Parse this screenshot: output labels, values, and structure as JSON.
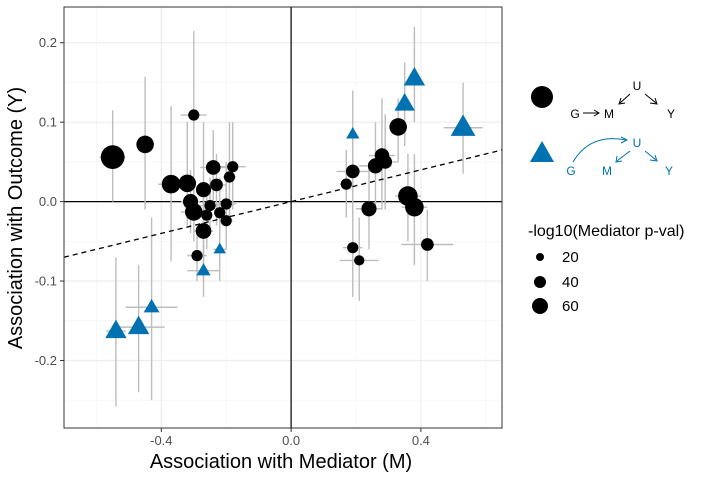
{
  "chart_data": {
    "type": "scatter",
    "title": "",
    "xlabel": "Association with Mediator (M)",
    "ylabel": "Association with Outcome (Y)",
    "xlim": [
      -0.7,
      0.65
    ],
    "ylim": [
      -0.285,
      0.245
    ],
    "x_ticks": [
      -0.4,
      0.0,
      0.4
    ],
    "x_tick_labels": [
      "-0.4",
      "0.0",
      "0.4"
    ],
    "y_ticks": [
      -0.2,
      -0.1,
      0.0,
      0.1,
      0.2
    ],
    "y_tick_labels": [
      "-0.2",
      "-0.1",
      "0.0",
      "0.1",
      "0.2"
    ],
    "grid": true,
    "reference_lines": {
      "x": 0,
      "y": 0
    },
    "trend_line": {
      "style": "dashed",
      "slope": 0.1,
      "intercept": 0.0
    },
    "colors": {
      "black_group": "#000000",
      "blue_group": "#0072b2",
      "error_bars": "#bdbdbd",
      "grid": "#ebebeb"
    },
    "size_legend": {
      "title": "-log10(Mediator p-val)",
      "values": [
        20,
        40,
        60
      ],
      "labels": [
        "20",
        "40",
        "60"
      ]
    },
    "shape_legend": [
      {
        "shape": "circle",
        "color": "#000000",
        "dag_nodes": [
          "G",
          "M",
          "U",
          "Y"
        ]
      },
      {
        "shape": "triangle",
        "color": "#0072b2",
        "dag_nodes": [
          "G",
          "M",
          "U",
          "Y"
        ]
      }
    ],
    "series": [
      {
        "shape": "circle",
        "color": "#000000",
        "points": [
          {
            "x": -0.55,
            "y": 0.056,
            "xerr": 0.04,
            "ylo": 0.0,
            "yhi": 0.115,
            "size": 65
          },
          {
            "x": -0.45,
            "y": 0.072,
            "xerr": 0.0,
            "ylo": -0.01,
            "yhi": 0.157,
            "size": 30
          },
          {
            "x": -0.37,
            "y": 0.022,
            "xerr": 0.04,
            "ylo": -0.075,
            "yhi": 0.12,
            "size": 35
          },
          {
            "x": -0.32,
            "y": 0.023,
            "xerr": 0.0,
            "ylo": -0.03,
            "yhi": 0.1,
            "size": 30
          },
          {
            "x": -0.31,
            "y": 0.0,
            "xerr": 0.03,
            "ylo": -0.04,
            "yhi": 0.04,
            "size": 20
          },
          {
            "x": -0.3,
            "y": -0.013,
            "xerr": 0.04,
            "ylo": -0.05,
            "yhi": 0.03,
            "size": 30
          },
          {
            "x": -0.3,
            "y": 0.109,
            "xerr": 0.04,
            "ylo": 0.01,
            "yhi": 0.215,
            "size": 8
          },
          {
            "x": -0.29,
            "y": -0.068,
            "xerr": 0.03,
            "ylo": -0.1,
            "yhi": -0.03,
            "size": 8
          },
          {
            "x": -0.27,
            "y": 0.015,
            "xerr": 0.0,
            "ylo": -0.07,
            "yhi": 0.1,
            "size": 20
          },
          {
            "x": -0.27,
            "y": -0.037,
            "xerr": 0.03,
            "ylo": -0.1,
            "yhi": 0.02,
            "size": 22
          },
          {
            "x": -0.26,
            "y": -0.017,
            "xerr": 0.0,
            "ylo": -0.06,
            "yhi": 0.02,
            "size": 8
          },
          {
            "x": -0.25,
            "y": -0.005,
            "xerr": 0.03,
            "ylo": -0.04,
            "yhi": 0.03,
            "size": 8
          },
          {
            "x": -0.24,
            "y": 0.043,
            "xerr": 0.04,
            "ylo": 0.0,
            "yhi": 0.09,
            "size": 18
          },
          {
            "x": -0.23,
            "y": 0.021,
            "xerr": 0.03,
            "ylo": -0.03,
            "yhi": 0.06,
            "size": 12
          },
          {
            "x": -0.22,
            "y": -0.014,
            "xerr": 0.0,
            "ylo": -0.06,
            "yhi": 0.03,
            "size": 8
          },
          {
            "x": -0.2,
            "y": -0.003,
            "xerr": 0.03,
            "ylo": -0.04,
            "yhi": 0.05,
            "size": 8
          },
          {
            "x": -0.18,
            "y": 0.044,
            "xerr": 0.04,
            "ylo": -0.01,
            "yhi": 0.1,
            "size": 8
          },
          {
            "x": -0.19,
            "y": 0.031,
            "xerr": 0.02,
            "ylo": -0.02,
            "yhi": 0.1,
            "size": 8
          },
          {
            "x": -0.2,
            "y": -0.024,
            "xerr": 0.02,
            "ylo": -0.06,
            "yhi": 0.03,
            "size": 8
          },
          {
            "x": 0.17,
            "y": 0.022,
            "xerr": 0.02,
            "ylo": -0.02,
            "yhi": 0.065,
            "size": 8
          },
          {
            "x": 0.19,
            "y": 0.038,
            "xerr": 0.05,
            "ylo": -0.015,
            "yhi": 0.09,
            "size": 15
          },
          {
            "x": 0.19,
            "y": -0.058,
            "xerr": 0.03,
            "ylo": -0.12,
            "yhi": 0.0,
            "size": 8
          },
          {
            "x": 0.21,
            "y": -0.074,
            "xerr": 0.06,
            "ylo": -0.125,
            "yhi": -0.02,
            "size": 6
          },
          {
            "x": 0.24,
            "y": -0.009,
            "xerr": 0.04,
            "ylo": -0.06,
            "yhi": 0.05,
            "size": 20
          },
          {
            "x": 0.26,
            "y": 0.045,
            "xerr": 0.05,
            "ylo": -0.01,
            "yhi": 0.1,
            "size": 20
          },
          {
            "x": 0.28,
            "y": 0.058,
            "xerr": 0.04,
            "ylo": -0.01,
            "yhi": 0.13,
            "size": 18
          },
          {
            "x": 0.29,
            "y": 0.05,
            "xerr": 0.04,
            "ylo": -0.01,
            "yhi": 0.11,
            "size": 15
          },
          {
            "x": 0.33,
            "y": 0.094,
            "xerr": 0.0,
            "ylo": 0.05,
            "yhi": 0.13,
            "size": 30
          },
          {
            "x": 0.36,
            "y": 0.007,
            "xerr": 0.04,
            "ylo": -0.05,
            "yhi": 0.06,
            "size": 40
          },
          {
            "x": 0.38,
            "y": -0.007,
            "xerr": 0.04,
            "ylo": -0.08,
            "yhi": 0.06,
            "size": 35
          },
          {
            "x": 0.42,
            "y": -0.054,
            "xerr": 0.08,
            "ylo": -0.1,
            "yhi": -0.01,
            "size": 12
          }
        ]
      },
      {
        "shape": "triangle",
        "color": "#0072b2",
        "points": [
          {
            "x": -0.54,
            "y": -0.163,
            "xerr": 0.03,
            "ylo": -0.258,
            "yhi": -0.07,
            "size": 45
          },
          {
            "x": -0.47,
            "y": -0.158,
            "xerr": 0.08,
            "ylo": -0.24,
            "yhi": -0.08,
            "size": 45
          },
          {
            "x": -0.43,
            "y": -0.133,
            "xerr": 0.08,
            "ylo": -0.25,
            "yhi": -0.02,
            "size": 20
          },
          {
            "x": -0.27,
            "y": -0.087,
            "xerr": 0.05,
            "ylo": -0.12,
            "yhi": -0.055,
            "size": 15
          },
          {
            "x": -0.22,
            "y": -0.06,
            "xerr": 0.02,
            "ylo": -0.1,
            "yhi": -0.02,
            "size": 10
          },
          {
            "x": 0.19,
            "y": 0.085,
            "xerr": 0.0,
            "ylo": 0.03,
            "yhi": 0.14,
            "size": 12
          },
          {
            "x": 0.35,
            "y": 0.123,
            "xerr": 0.0,
            "ylo": 0.07,
            "yhi": 0.175,
            "size": 40
          },
          {
            "x": 0.38,
            "y": 0.155,
            "xerr": 0.0,
            "ylo": 0.1,
            "yhi": 0.22,
            "size": 45
          },
          {
            "x": 0.53,
            "y": 0.093,
            "xerr": 0.06,
            "ylo": 0.035,
            "yhi": 0.15,
            "size": 65
          }
        ]
      }
    ]
  }
}
